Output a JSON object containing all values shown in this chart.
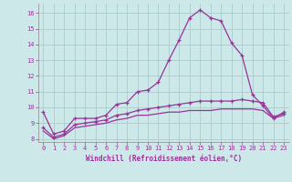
{
  "x": [
    0,
    1,
    2,
    3,
    4,
    5,
    6,
    7,
    8,
    9,
    10,
    11,
    12,
    13,
    14,
    15,
    16,
    17,
    18,
    19,
    20,
    21,
    22,
    23
  ],
  "line1": [
    9.7,
    8.3,
    8.5,
    9.3,
    9.3,
    9.3,
    9.5,
    10.2,
    10.3,
    11.0,
    11.1,
    11.6,
    13.0,
    14.3,
    15.7,
    16.2,
    15.7,
    15.5,
    14.1,
    13.3,
    10.8,
    10.1,
    9.3,
    9.7
  ],
  "line2": [
    8.7,
    8.1,
    8.3,
    8.9,
    9.0,
    9.1,
    9.2,
    9.5,
    9.6,
    9.8,
    9.9,
    10.0,
    10.1,
    10.2,
    10.3,
    10.4,
    10.4,
    10.4,
    10.4,
    10.5,
    10.4,
    10.3,
    9.4,
    9.6
  ],
  "line3": [
    8.5,
    8.0,
    8.2,
    8.7,
    8.8,
    8.9,
    9.0,
    9.2,
    9.3,
    9.5,
    9.5,
    9.6,
    9.7,
    9.7,
    9.8,
    9.8,
    9.8,
    9.9,
    9.9,
    9.9,
    9.9,
    9.8,
    9.3,
    9.5
  ],
  "line_color": "#993399",
  "bg_color": "#cce8e8",
  "grid_color": "#aacccc",
  "xlabel": "Windchill (Refroidissement éolien,°C)",
  "xlabel_color": "#993399",
  "tick_color": "#993399",
  "ylim": [
    7.8,
    16.6
  ],
  "xlim": [
    -0.5,
    23.5
  ],
  "yticks": [
    8,
    9,
    10,
    11,
    12,
    13,
    14,
    15,
    16
  ],
  "xticks": [
    0,
    1,
    2,
    3,
    4,
    5,
    6,
    7,
    8,
    9,
    10,
    11,
    12,
    13,
    14,
    15,
    16,
    17,
    18,
    19,
    20,
    21,
    22,
    23
  ]
}
